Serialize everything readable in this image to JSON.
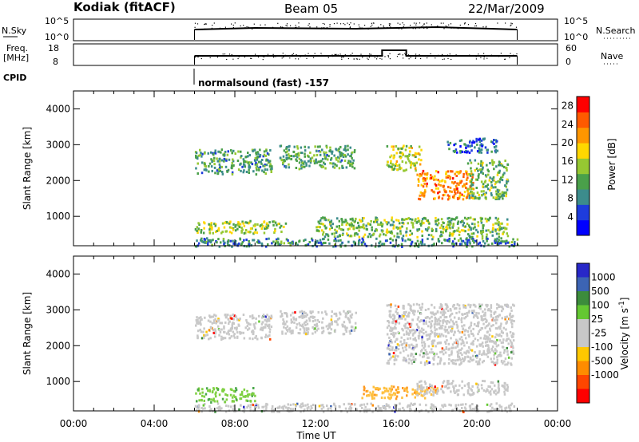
{
  "header": {
    "station": "Kodiak (fitACF)",
    "beam": "Beam 05",
    "date": "22/Mar/2009"
  },
  "top_panels": {
    "nsky_label": "N.Sky",
    "nsky_ticks": [
      "10^5",
      "10^0"
    ],
    "nsearch_label": "N.Search",
    "nsearch_ticks": [
      "10^5",
      "10^0"
    ],
    "freq_label": "Freq.",
    "freq_unit": "[MHz]",
    "freq_ticks": [
      "18",
      "8"
    ],
    "nave_label": "Nave",
    "nave_ticks": [
      "60",
      "0"
    ],
    "cpid_label": "CPID",
    "cpid_text": "normalsound (fast) -157"
  },
  "colors": {
    "power_scale": [
      "#0000ff",
      "#1e3cdc",
      "#3c8c8c",
      "#4aa04a",
      "#96c832",
      "#ffd700",
      "#ff9600",
      "#ff5a00",
      "#ff0000"
    ],
    "velocity_scale": [
      "#2828c8",
      "#3c64b4",
      "#3c8c3c",
      "#64c832",
      "#c8c8c8",
      "#c8c8c8",
      "#ffc800",
      "#ff8c00",
      "#ff4600",
      "#ff0000"
    ],
    "ground_scatter": "#c8c8c8"
  },
  "chart_data": [
    {
      "type": "heatmap",
      "title": "Power",
      "xlabel": "Time UT",
      "ylabel": "Slant Range [km]",
      "x_ticks": [
        "00:00",
        "04:00",
        "08:00",
        "12:00",
        "16:00",
        "20:00",
        "00:00"
      ],
      "y_ticks": [
        1000,
        2000,
        3000,
        4000
      ],
      "ylim": [
        180,
        4500
      ],
      "xlim_hours": [
        0,
        24
      ],
      "colorbar": {
        "label": "Power [dB]",
        "ticks": [
          4,
          8,
          12,
          16,
          20,
          24,
          28
        ],
        "range": [
          0,
          30
        ]
      },
      "regions": [
        {
          "t0": 6.0,
          "t1": 9.8,
          "r0": 2200,
          "r1": 2900,
          "level": 10
        },
        {
          "t0": 10.2,
          "t1": 14.0,
          "r0": 2350,
          "r1": 3000,
          "level": 11
        },
        {
          "t0": 15.5,
          "t1": 17.2,
          "r0": 2300,
          "r1": 3000,
          "level": 16
        },
        {
          "t0": 17.0,
          "t1": 19.8,
          "r0": 1500,
          "r1": 2300,
          "level": 24
        },
        {
          "t0": 19.5,
          "t1": 21.5,
          "r0": 1500,
          "r1": 2600,
          "level": 12
        },
        {
          "t0": 18.5,
          "t1": 21.0,
          "r0": 2800,
          "r1": 3200,
          "level": 6
        },
        {
          "t0": 6.0,
          "t1": 10.5,
          "r0": 550,
          "r1": 900,
          "level": 15
        },
        {
          "t0": 12.0,
          "t1": 21.5,
          "r0": 450,
          "r1": 1000,
          "level": 13
        },
        {
          "t0": 6.0,
          "t1": 22.0,
          "r0": 180,
          "r1": 420,
          "level": 8
        }
      ]
    },
    {
      "type": "heatmap",
      "title": "Velocity",
      "xlabel": "Time UT",
      "ylabel": "Slant Range [km]",
      "x_ticks": [
        "00:00",
        "04:00",
        "08:00",
        "12:00",
        "16:00",
        "20:00",
        "00:00"
      ],
      "y_ticks": [
        1000,
        2000,
        3000,
        4000
      ],
      "ylim": [
        180,
        4500
      ],
      "xlim_hours": [
        0,
        24
      ],
      "colorbar": {
        "label": "Velocity [m s^-1]",
        "ticks": [
          1000,
          500,
          100,
          25,
          -25,
          -100,
          -500,
          -1000
        ]
      },
      "regions": [
        {
          "t0": 6.0,
          "t1": 9.8,
          "r0": 2200,
          "r1": 2900,
          "vel": 0
        },
        {
          "t0": 10.2,
          "t1": 14.0,
          "r0": 2350,
          "r1": 3000,
          "vel": 0
        },
        {
          "t0": 15.5,
          "t1": 21.8,
          "r0": 1500,
          "r1": 3200,
          "vel": 0
        },
        {
          "t0": 6.0,
          "t1": 9.0,
          "r0": 450,
          "r1": 850,
          "vel": 150
        },
        {
          "t0": 14.2,
          "t1": 18.0,
          "r0": 550,
          "r1": 900,
          "vel": -120
        },
        {
          "t0": 17.0,
          "t1": 21.5,
          "r0": 650,
          "r1": 1050,
          "vel": 0
        },
        {
          "t0": 6.0,
          "t1": 22.0,
          "r0": 180,
          "r1": 420,
          "vel": 30
        }
      ]
    }
  ]
}
